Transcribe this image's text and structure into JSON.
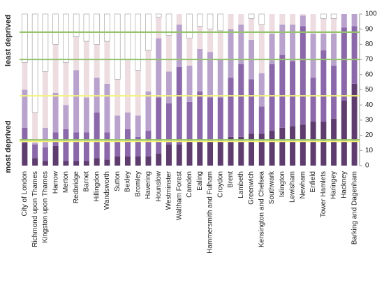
{
  "chart_data": {
    "type": "stacked_bar",
    "categories": [
      "City of London",
      "Richmond upon Thames",
      "Kingston upon Thames",
      "Harrow",
      "Merton",
      "Redbridge",
      "Barnet",
      "Hillingdon",
      "Wandsworth",
      "Sutton",
      "Bexley",
      "Bromley",
      "Havering",
      "Hounslow",
      "Westminster",
      "Waltham Forest",
      "Camden",
      "Ealing",
      "Hammersmith and Fulham",
      "Croydon",
      "Brent",
      "Lambeth",
      "Greenwich",
      "Kensington and Chelsea",
      "Southwark",
      "Islington",
      "Lewisham",
      "Newham",
      "Enfield",
      "Tower Hamlets",
      "Haringey",
      "Hackney",
      "Barking and Dagenham"
    ],
    "series": [
      {
        "color": "#5e3d6e",
        "values": [
          15,
          5,
          3,
          13,
          3,
          3,
          3,
          5,
          4,
          6,
          6,
          6,
          6,
          8,
          14,
          14,
          17,
          16,
          17,
          17,
          19,
          19,
          21,
          21,
          23,
          25,
          26,
          27,
          29,
          29,
          31,
          43,
          54
        ]
      },
      {
        "color": "#8b68a9",
        "values": [
          10,
          9,
          9,
          9,
          21,
          19,
          19,
          30,
          18,
          10,
          18,
          13,
          17,
          37,
          27,
          51,
          25,
          33,
          28,
          28,
          39,
          48,
          36,
          18,
          44,
          48,
          43,
          65,
          29,
          47,
          35,
          48,
          38
        ]
      },
      {
        "color": "#b9a3cd",
        "values": [
          25,
          1,
          13,
          26,
          16,
          41,
          23,
          23,
          32,
          17,
          11,
          14,
          26,
          39,
          21,
          28,
          24,
          28,
          30,
          25,
          32,
          26,
          26,
          22,
          20,
          20,
          24,
          7,
          29,
          11,
          21,
          9,
          8
        ]
      },
      {
        "color": "#eddde1",
        "values": [
          18,
          20,
          37,
          32,
          28,
          22,
          37,
          22,
          28,
          24,
          35,
          30,
          27,
          14,
          24,
          7,
          18,
          15,
          15,
          19,
          10,
          7,
          14,
          32,
          13,
          7,
          7,
          1,
          13,
          10,
          10,
          0,
          0
        ]
      },
      {
        "color": "#ffffff",
        "values": [
          32,
          65,
          38,
          20,
          32,
          15,
          18,
          20,
          18,
          43,
          30,
          37,
          24,
          2,
          14,
          0,
          16,
          8,
          10,
          11,
          0,
          0,
          3,
          7,
          0,
          0,
          0,
          0,
          0,
          3,
          3,
          0,
          0
        ]
      }
    ],
    "axis_labels": {
      "top": "least deprived",
      "bottom": "most deprived"
    },
    "reference_lines": [
      {
        "value": 16,
        "color": "#f2f27a"
      },
      {
        "value": 17,
        "color": "#93c36b"
      },
      {
        "value": 46,
        "color": "#f2f27a"
      },
      {
        "value": 70,
        "color": "#93c36b"
      },
      {
        "value": 88,
        "color": "#93c36b"
      }
    ],
    "ylim": [
      0,
      100
    ],
    "yticks": [
      0,
      10,
      20,
      30,
      40,
      50,
      60,
      70,
      80,
      90,
      100
    ]
  }
}
